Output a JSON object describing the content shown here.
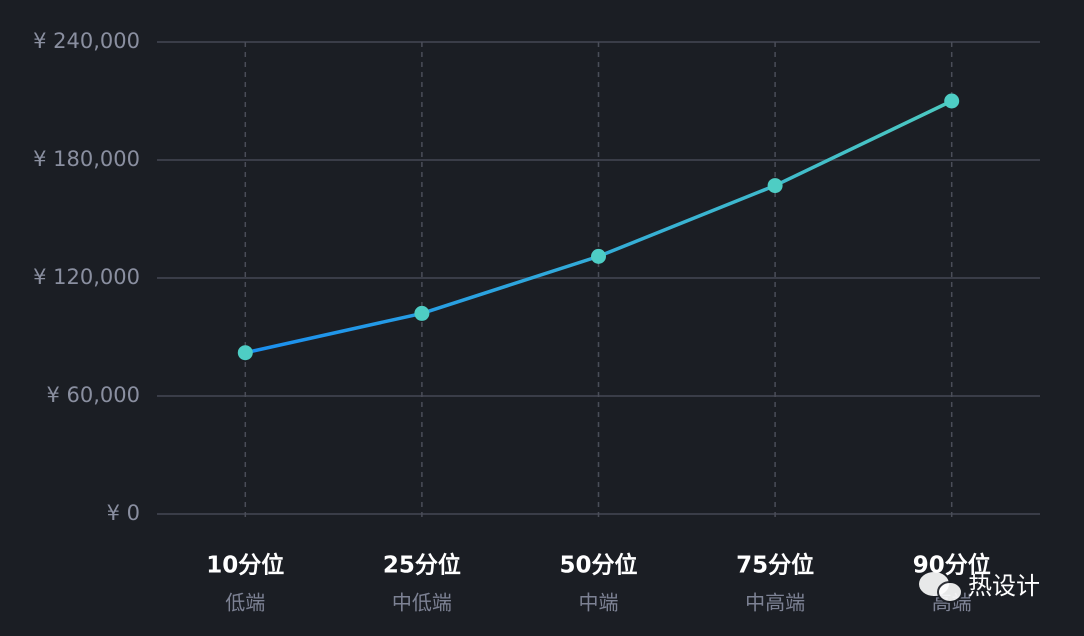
{
  "chart_data": {
    "type": "line",
    "categories": [
      "10分位",
      "25分位",
      "50分位",
      "75分位",
      "90分位"
    ],
    "category_sublabels": [
      "低端",
      "中低端",
      "中端",
      "中高端",
      "高端"
    ],
    "values": [
      82000,
      102000,
      131000,
      167000,
      210000
    ],
    "color": "#4ecdc4",
    "line_colors": [
      "#1a8ff0",
      "#4cc9c0"
    ],
    "ylim": [
      0,
      240000
    ],
    "yticks": [
      {
        "value": 0,
        "label": "¥ 0"
      },
      {
        "value": 60000,
        "label": "¥ 60,000"
      },
      {
        "value": 120000,
        "label": "¥ 120,000"
      },
      {
        "value": 180000,
        "label": "¥ 180,000"
      },
      {
        "value": 240000,
        "label": "¥ 240,000"
      }
    ],
    "grid": true,
    "watermark": "热设计"
  }
}
